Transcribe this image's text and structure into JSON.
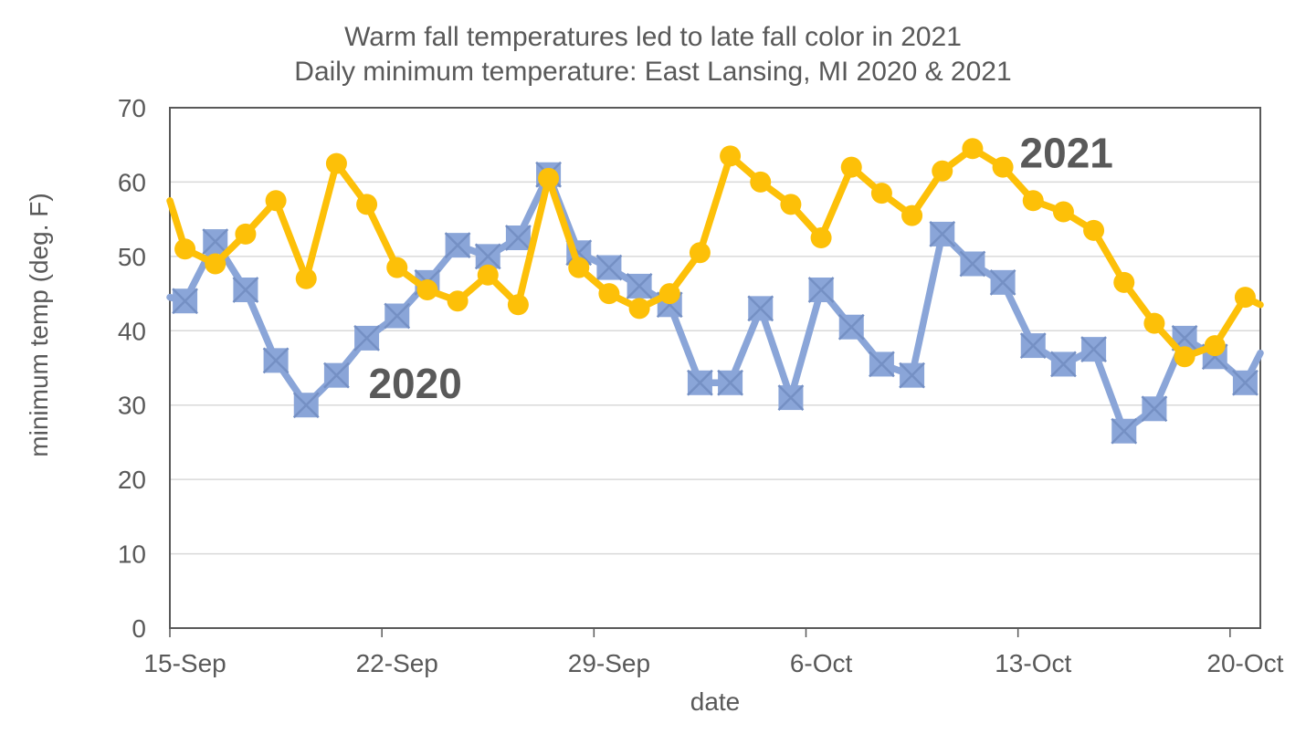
{
  "title": {
    "line1": "Warm fall temperatures led to late fall color in 2021",
    "line2": "Daily minimum temperature: East Lansing, MI 2020 & 2021"
  },
  "colors": {
    "series_2020": "#8AA5D8",
    "series_2020_cross": "#7590C4",
    "series_2021": "#FDC008",
    "text": "#595959",
    "gridline": "#D9D9D9",
    "border": "#595959",
    "background": "#FFFFFF"
  },
  "chart_data": {
    "type": "line",
    "title": "Warm fall temperatures led to late fall color in 2021",
    "subtitle": "Daily minimum temperature: East Lansing, MI 2020 & 2021",
    "xlabel": "date",
    "ylabel": "minimum temp (deg. F)",
    "ylim": [
      0,
      70
    ],
    "ytick_step": 10,
    "grid": true,
    "legend": "inline series labels placed next to lines",
    "x": [
      "15-Sep",
      "16-Sep",
      "17-Sep",
      "18-Sep",
      "19-Sep",
      "20-Sep",
      "21-Sep",
      "22-Sep",
      "23-Sep",
      "24-Sep",
      "25-Sep",
      "26-Sep",
      "27-Sep",
      "28-Sep",
      "29-Sep",
      "30-Sep",
      "1-Oct",
      "2-Oct",
      "3-Oct",
      "4-Oct",
      "5-Oct",
      "6-Oct",
      "7-Oct",
      "8-Oct",
      "9-Oct",
      "10-Oct",
      "11-Oct",
      "12-Oct",
      "13-Oct",
      "14-Oct",
      "15-Oct",
      "16-Oct",
      "17-Oct",
      "18-Oct",
      "19-Oct",
      "20-Oct"
    ],
    "x_tick_indices": [
      0,
      7,
      14,
      21,
      28,
      35
    ],
    "x_tick_labels": [
      "15-Sep",
      "22-Sep",
      "29-Sep",
      "6-Oct",
      "13-Oct",
      "20-Oct"
    ],
    "series": [
      {
        "name": "2020",
        "marker": "square",
        "color": "#8AA5D8",
        "cross_color": "#7590C4",
        "values": [
          44,
          52,
          45.5,
          36,
          30,
          34,
          39,
          42,
          46.5,
          51.5,
          50,
          52.5,
          61,
          50.5,
          48.5,
          46,
          43.5,
          33,
          33,
          43,
          31,
          45.5,
          40.5,
          35.5,
          34,
          53,
          49,
          46.5,
          38,
          35.5,
          37.5,
          26.5,
          29.5,
          39,
          36.5,
          33
        ],
        "clipped_edge_start_value": 44.5,
        "clipped_edge_end_value": 37
      },
      {
        "name": "2021",
        "marker": "circle",
        "color": "#FDC008",
        "values": [
          51,
          49,
          53,
          57.5,
          47,
          62.5,
          57,
          48.5,
          45.5,
          44,
          47.5,
          43.5,
          60.5,
          48.5,
          45,
          43,
          45,
          50.5,
          63.5,
          60,
          57,
          52.5,
          62,
          58.5,
          55.5,
          61.5,
          64.5,
          62,
          57.5,
          56,
          53.5,
          46.5,
          41,
          36.5,
          38,
          44.5
        ],
        "clipped_edge_start_value": 57.5,
        "clipped_edge_end_value": 43.5
      }
    ],
    "annotations": [
      {
        "text": "2020",
        "day_index": 7.6,
        "value": 32.9,
        "color": "#8AA5D8"
      },
      {
        "text": "2021",
        "day_index": 29.1,
        "value": 63.9,
        "color": "#FDC008"
      }
    ]
  }
}
